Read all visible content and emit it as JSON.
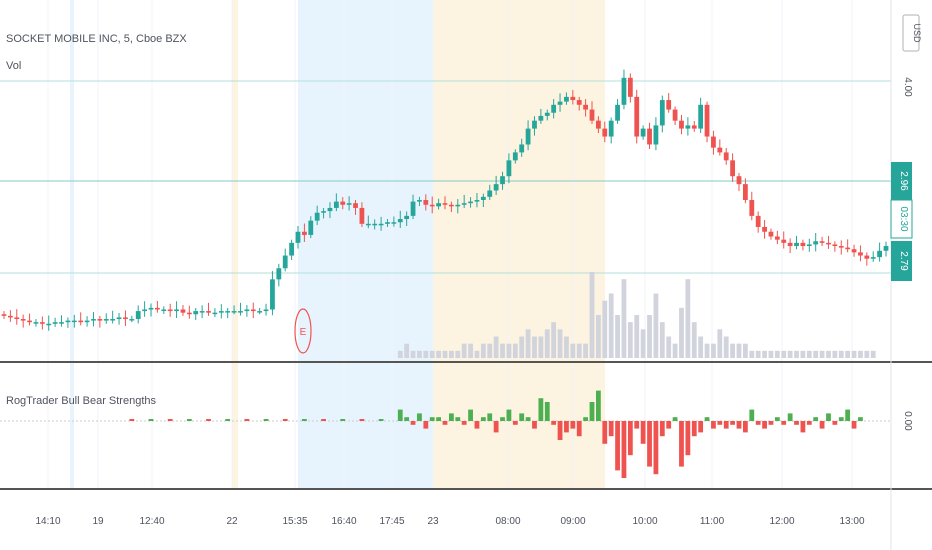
{
  "header": {
    "title": "SOCKET MOBILE INC, 5, Cboe BZX",
    "volume_label": "Vol",
    "currency": "USD"
  },
  "indicator": {
    "name": "RogTrader Bull Bear Strengths",
    "zero_label": "0.00"
  },
  "price_scale": {
    "tick_label": "4.00",
    "last_price": "2.96",
    "countdown": "03:30",
    "other_price": "2.79"
  },
  "time_axis": [
    "14:10",
    "19",
    "12:40",
    "22",
    "15:35",
    "16:40",
    "17:45",
    "23",
    "08:00",
    "09:00",
    "10:00",
    "11:00",
    "12:00",
    "13:00"
  ],
  "earnings_marker": "E",
  "colors": {
    "up": "#26a69a",
    "down": "#ef5350",
    "volume": "#d1d4dc",
    "osc_up": "#4caf50",
    "osc_down": "#ef5350",
    "premarket": "#fdf3e1",
    "afterhours": "#e8f4fd",
    "price_badge": "#26a69a"
  },
  "chart_data": {
    "type": "candlestick",
    "price_ylim": [
      2.2,
      4.2
    ],
    "price_series": [
      2.52,
      2.51,
      2.5,
      2.49,
      2.48,
      2.48,
      2.47,
      2.47,
      2.48,
      2.48,
      2.49,
      2.49,
      2.48,
      2.49,
      2.5,
      2.49,
      2.5,
      2.5,
      2.51,
      2.5,
      2.5,
      2.55,
      2.56,
      2.57,
      2.56,
      2.56,
      2.55,
      2.56,
      2.54,
      2.53,
      2.55,
      2.55,
      2.54,
      2.54,
      2.55,
      2.55,
      2.55,
      2.55,
      2.56,
      2.55,
      2.55,
      2.56,
      2.75,
      2.82,
      2.9,
      2.98,
      3.05,
      3.03,
      3.12,
      3.17,
      3.18,
      3.2,
      3.24,
      3.22,
      3.23,
      3.2,
      3.1,
      3.1,
      3.1,
      3.1,
      3.11,
      3.11,
      3.13,
      3.15,
      3.24,
      3.25,
      3.22,
      3.21,
      3.23,
      3.22,
      3.21,
      3.22,
      3.23,
      3.24,
      3.25,
      3.27,
      3.31,
      3.35,
      3.4,
      3.5,
      3.55,
      3.6,
      3.7,
      3.75,
      3.78,
      3.8,
      3.85,
      3.87,
      3.9,
      3.88,
      3.85,
      3.82,
      3.75,
      3.7,
      3.65,
      3.75,
      3.85,
      4.02,
      3.9,
      3.65,
      3.7,
      3.6,
      3.72,
      3.88,
      3.82,
      3.75,
      3.7,
      3.72,
      3.7,
      3.85,
      3.65,
      3.58,
      3.55,
      3.5,
      3.4,
      3.35,
      3.25,
      3.15,
      3.08,
      3.05,
      3.02,
      3.0,
      2.98,
      2.96,
      2.98,
      2.96,
      2.97,
      2.99,
      2.98,
      2.97,
      2.96,
      2.95,
      2.94,
      2.92,
      2.9,
      2.88,
      2.89,
      2.93,
      2.96
    ],
    "volume_values": [
      0,
      0,
      0,
      0,
      0,
      0,
      0,
      0,
      0,
      0,
      0,
      0,
      0,
      0,
      0,
      0,
      0,
      0,
      0,
      0,
      0,
      0,
      0,
      0,
      0,
      0,
      0,
      0,
      0,
      0,
      0,
      0,
      0,
      0,
      0,
      0,
      0,
      0,
      0,
      0,
      0,
      0,
      0,
      0,
      0,
      0,
      0,
      0,
      0,
      0,
      0,
      0,
      0,
      0,
      0,
      0,
      0,
      0,
      0,
      0,
      0,
      0,
      1,
      2,
      1,
      1,
      1,
      1,
      1,
      1,
      1,
      1,
      2,
      2,
      1,
      2,
      2,
      3,
      2,
      2,
      2,
      3,
      4,
      3,
      3,
      4,
      5,
      4,
      3,
      2,
      2,
      2,
      12,
      6,
      8,
      9,
      6,
      11,
      5,
      6,
      4,
      6,
      9,
      5,
      3,
      2,
      7,
      11,
      5,
      3,
      2,
      2,
      4,
      3,
      2,
      2,
      2,
      1,
      1,
      1,
      1,
      1,
      1,
      1,
      1,
      1,
      1,
      1,
      1,
      1,
      1,
      1,
      1,
      1,
      1,
      1,
      1
    ],
    "oscillator_values": [
      0,
      0,
      0,
      0,
      0,
      0,
      0,
      0,
      0,
      0,
      0,
      0,
      0,
      0,
      0,
      0,
      0,
      0,
      0,
      0,
      0,
      0,
      0,
      0,
      0,
      0,
      0,
      0,
      0,
      0,
      0,
      0,
      0,
      0,
      0,
      0,
      0,
      0,
      0,
      0,
      0,
      0,
      0,
      0,
      0,
      0,
      0,
      0,
      0,
      0,
      0,
      0,
      0,
      0,
      0,
      0,
      0,
      0,
      0,
      0,
      0,
      0,
      3,
      1,
      -1,
      2,
      -2,
      1,
      1,
      -1,
      2,
      1,
      -1,
      3,
      -2,
      1,
      2,
      -3,
      1,
      3,
      -1,
      2,
      1,
      -2,
      6,
      5,
      -1,
      -5,
      -3,
      -2,
      -4,
      1,
      5,
      8,
      -6,
      -4,
      -13,
      -15,
      -9,
      -2,
      -6,
      -12,
      -14,
      -4,
      -2,
      1,
      -12,
      -9,
      -4,
      -3,
      1,
      -2,
      -1,
      -2,
      -1,
      -2,
      -3,
      3,
      -1,
      -2,
      -1,
      1,
      -1,
      2,
      -1,
      -3,
      -1,
      1,
      -2,
      2,
      -1,
      1,
      3,
      -2,
      1
    ]
  }
}
